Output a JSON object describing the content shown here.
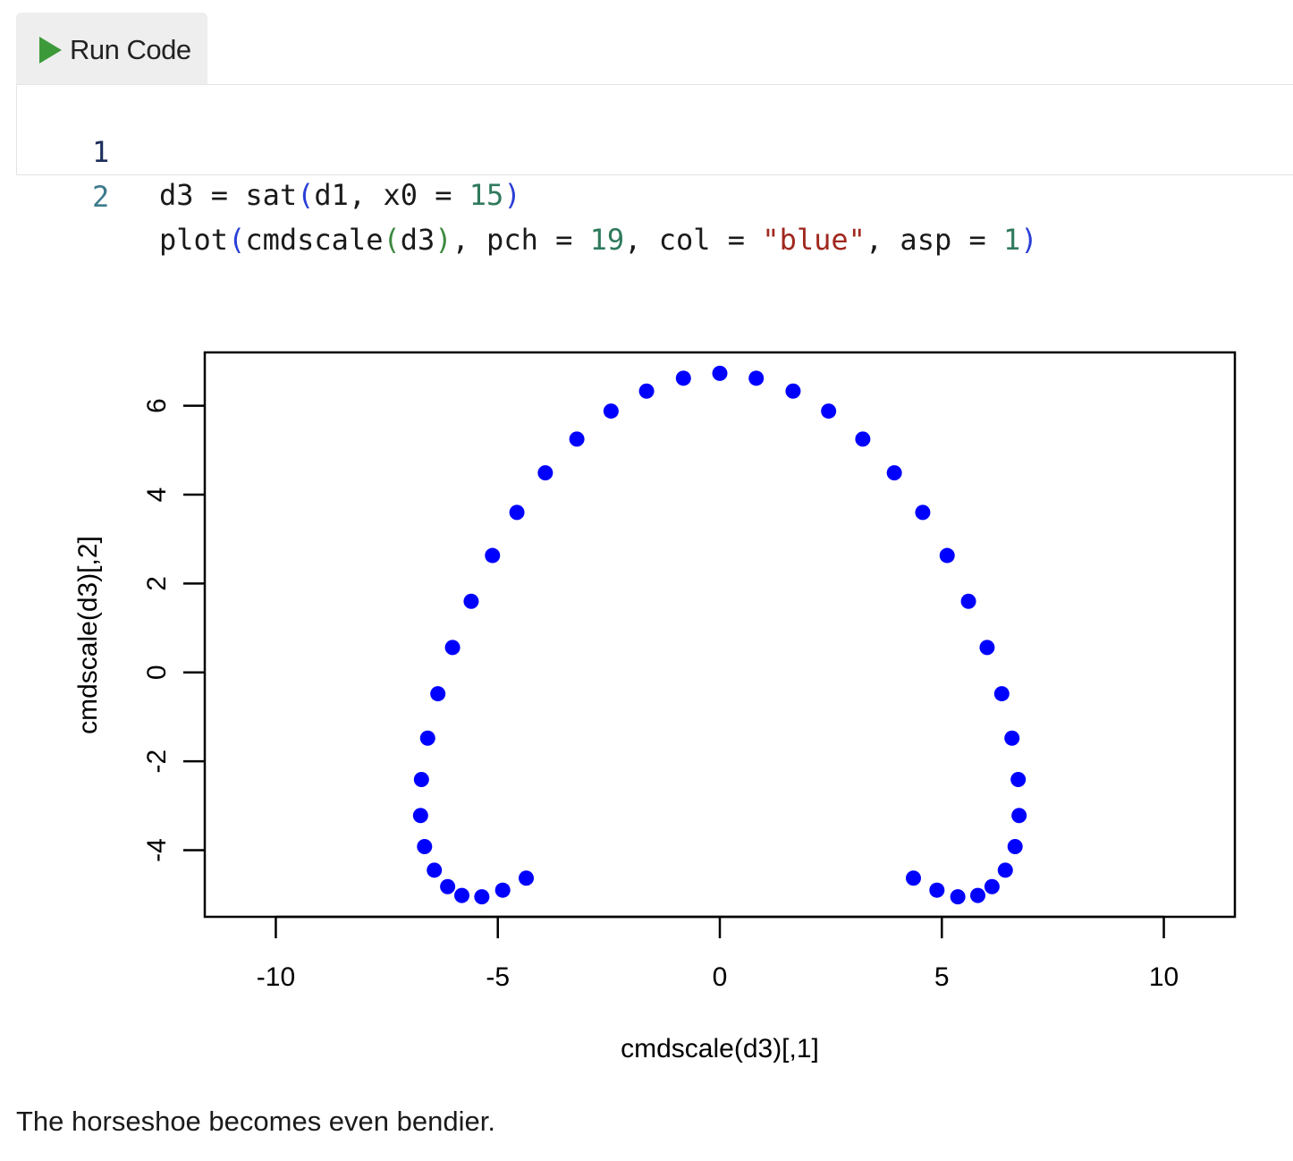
{
  "run_button": {
    "label": "Run Code",
    "icon": "play-icon",
    "icon_color": "#3d9a3a"
  },
  "code": {
    "lines": [
      {
        "number": "1",
        "tokens": [
          {
            "t": "d3 = sat",
            "k": "plain"
          },
          {
            "t": "(",
            "k": "paren"
          },
          {
            "t": "d1, x0 = ",
            "k": "plain"
          },
          {
            "t": "15",
            "k": "num"
          },
          {
            "t": ")",
            "k": "paren"
          }
        ]
      },
      {
        "number": "2",
        "tokens": [
          {
            "t": "plot",
            "k": "plain"
          },
          {
            "t": "(",
            "k": "paren"
          },
          {
            "t": "cmdscale",
            "k": "plain"
          },
          {
            "t": "(",
            "k": "paren2"
          },
          {
            "t": "d3",
            "k": "plain"
          },
          {
            "t": ")",
            "k": "paren2"
          },
          {
            "t": ", pch = ",
            "k": "plain"
          },
          {
            "t": "19",
            "k": "num"
          },
          {
            "t": ", col = ",
            "k": "plain"
          },
          {
            "t": "\"blue\"",
            "k": "str"
          },
          {
            "t": ", asp = ",
            "k": "plain"
          },
          {
            "t": "1",
            "k": "num"
          },
          {
            "t": ")",
            "k": "paren"
          }
        ]
      }
    ]
  },
  "chart_data": {
    "type": "scatter",
    "xlabel": "cmdscale(d3)[,1]",
    "ylabel": "cmdscale(d3)[,2]",
    "xlim": [
      -11.6,
      11.6
    ],
    "ylim": [
      -5.5,
      7.2
    ],
    "x_ticks": [
      -10,
      -5,
      0,
      5,
      10
    ],
    "x_tick_labels": [
      "-10",
      "-5",
      "0",
      "5",
      "10"
    ],
    "y_ticks": [
      -4,
      -2,
      0,
      2,
      4,
      6
    ],
    "y_tick_labels": [
      "-4",
      "-2",
      "0",
      "2",
      "4",
      "6"
    ],
    "grid": false,
    "legend": "none",
    "point_color": "#0000ff",
    "series": [
      {
        "x": [
          0,
          0.82,
          1.65,
          2.45,
          3.22,
          3.93,
          4.57,
          5.12,
          5.6,
          6.02,
          6.35,
          6.58,
          6.72,
          6.74,
          6.65,
          6.43,
          6.13,
          5.81,
          5.36,
          4.89,
          4.36,
          -0.82,
          -1.65,
          -2.45,
          -3.22,
          -3.93,
          -4.57,
          -5.12,
          -5.6,
          -6.02,
          -6.35,
          -6.58,
          -6.72,
          -6.74,
          -6.65,
          -6.43,
          -6.13,
          -5.81,
          -5.36,
          -4.89,
          -4.36
        ],
        "y": [
          6.73,
          6.62,
          6.33,
          5.88,
          5.25,
          4.49,
          3.6,
          2.63,
          1.6,
          0.56,
          -0.48,
          -1.48,
          -2.41,
          -3.22,
          -3.92,
          -4.45,
          -4.82,
          -5.02,
          -5.05,
          -4.9,
          -4.63,
          6.62,
          6.33,
          5.88,
          5.25,
          4.49,
          3.6,
          2.63,
          1.6,
          0.56,
          -0.48,
          -1.48,
          -2.41,
          -3.22,
          -3.92,
          -4.45,
          -4.82,
          -5.02,
          -5.05,
          -4.9,
          -4.63
        ]
      }
    ]
  },
  "caption": "The horseshoe becomes even bendier."
}
